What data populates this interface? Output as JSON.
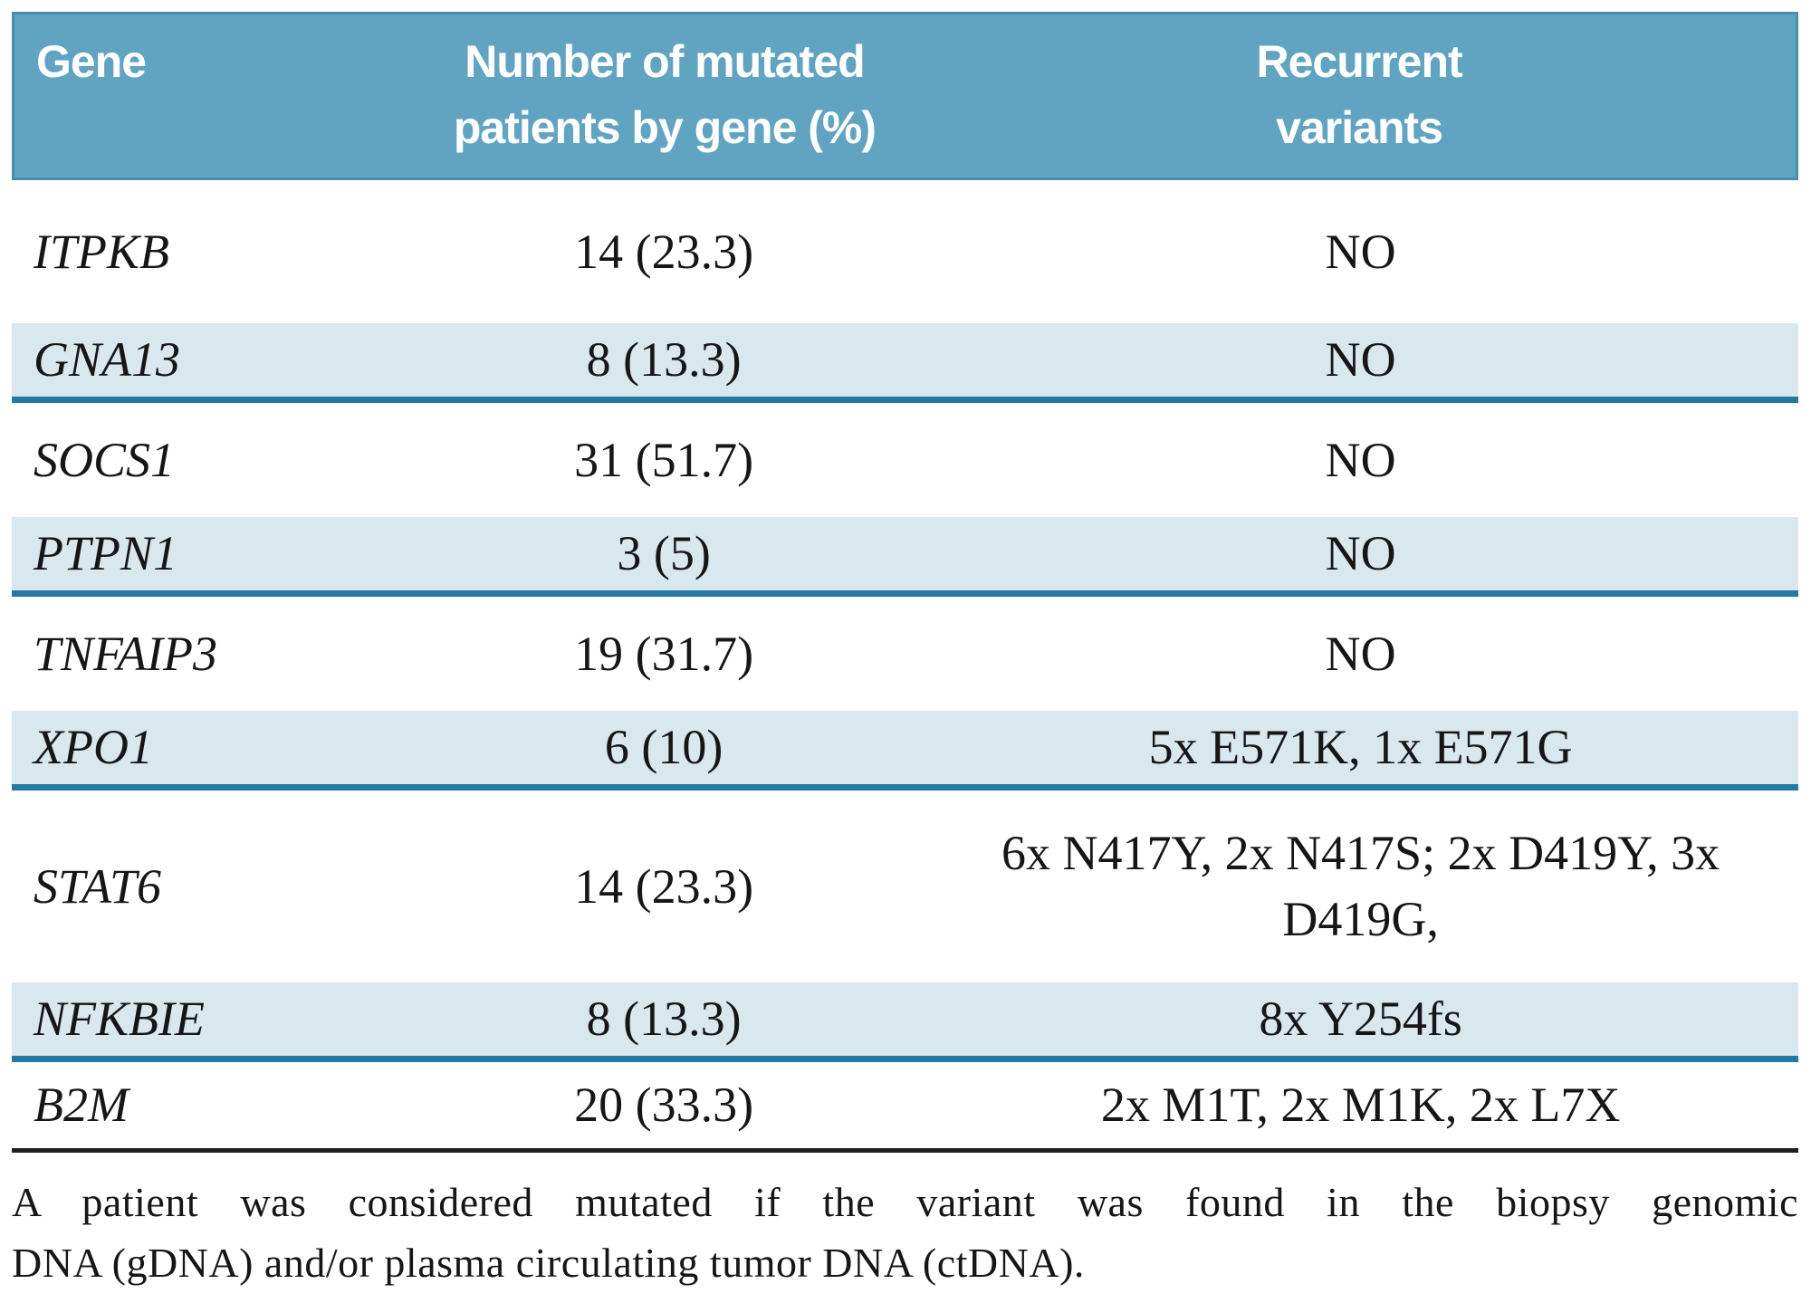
{
  "colors": {
    "header-bg": "#61a4c2",
    "header-border": "#4a8eae",
    "header-text": "#ffffff",
    "row-alt-bg": "#d9e7ef",
    "divider-teal": "#2279a4",
    "bottom-rule": "#1f1f1f",
    "text": "#161616"
  },
  "table": {
    "header": {
      "gene": "Gene",
      "patients_line1": "Number of mutated",
      "patients_line2": "patients by gene  (%)",
      "variants_line1": "Recurrent",
      "variants_line2": "variants"
    },
    "rows": [
      {
        "gene": "ITPKB",
        "patients": "14 (23.3)",
        "variants": "NO",
        "highlight": false
      },
      {
        "gene": "GNA13",
        "patients": "8 (13.3)",
        "variants": "NO",
        "highlight": true
      },
      {
        "gene": "SOCS1",
        "patients": "31 (51.7)",
        "variants": "NO",
        "highlight": false
      },
      {
        "gene": "PTPN1",
        "patients": "3 (5)",
        "variants": "NO",
        "highlight": true
      },
      {
        "gene": "TNFAIP3",
        "patients": "19 (31.7)",
        "variants": "NO",
        "highlight": false
      },
      {
        "gene": "XPO1",
        "patients": "6 (10)",
        "variants": "5x E571K, 1x E571G",
        "highlight": true
      },
      {
        "gene": "STAT6",
        "patients": "14 (23.3)",
        "variants": "6x N417Y, 2x N417S; 2x D419Y, 3x D419G,",
        "highlight": false
      },
      {
        "gene": "NFKBIE",
        "patients": "8 (13.3)",
        "variants": "8x Y254fs",
        "highlight": true
      },
      {
        "gene": "B2M",
        "patients": "20 (33.3)",
        "variants": "2x M1T, 2x M1K, 2x L7X",
        "highlight": false
      }
    ],
    "footnote_line1": "A patient was considered mutated if the variant was found in the biopsy genomic",
    "footnote_line2": "DNA (gDNA) and/or plasma circulating tumor DNA (ctDNA)."
  }
}
